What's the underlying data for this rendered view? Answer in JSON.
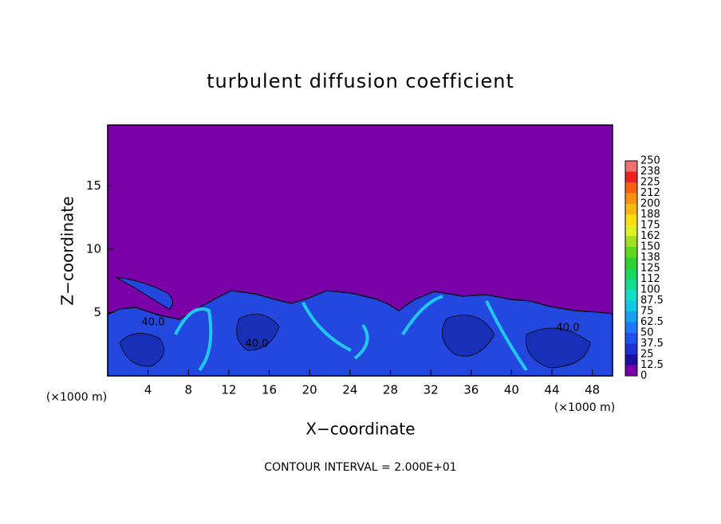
{
  "chart_data": {
    "type": "contour",
    "title": "turbulent diffusion coefficient",
    "x_label": "X−coordinate",
    "y_label": "Z−coordinate",
    "x_unit_left": "(×1000 m)",
    "x_unit_right": "(×1000 m)",
    "footer": "CONTOUR INTERVAL = 2.000E+01",
    "contour_labels": [
      "40.0",
      "40.0",
      "40.0"
    ],
    "xlim": [
      0,
      50
    ],
    "ylim": [
      0,
      19.8
    ],
    "xticks": [
      4,
      8,
      12,
      16,
      20,
      24,
      28,
      32,
      36,
      40,
      44,
      48
    ],
    "yticks": [
      5,
      10,
      15
    ],
    "background_color": "#7a00a8",
    "colorbar": {
      "levels": [
        0,
        12.5,
        25,
        37.5,
        50,
        62.5,
        75,
        87.5,
        100,
        112,
        125,
        138,
        150,
        162,
        175,
        188,
        200,
        212,
        225,
        238,
        250
      ],
      "colors": [
        "#7a00a8",
        "#1a0fa0",
        "#1f2fd6",
        "#2050f0",
        "#1e78f5",
        "#15a0f0",
        "#10c8e8",
        "#10e0c8",
        "#10e090",
        "#18d860",
        "#30d030",
        "#60d820",
        "#a0e020",
        "#e0f020",
        "#f8e010",
        "#f8b810",
        "#f89010",
        "#f86010",
        "#f02020",
        "#f07070"
      ]
    }
  }
}
